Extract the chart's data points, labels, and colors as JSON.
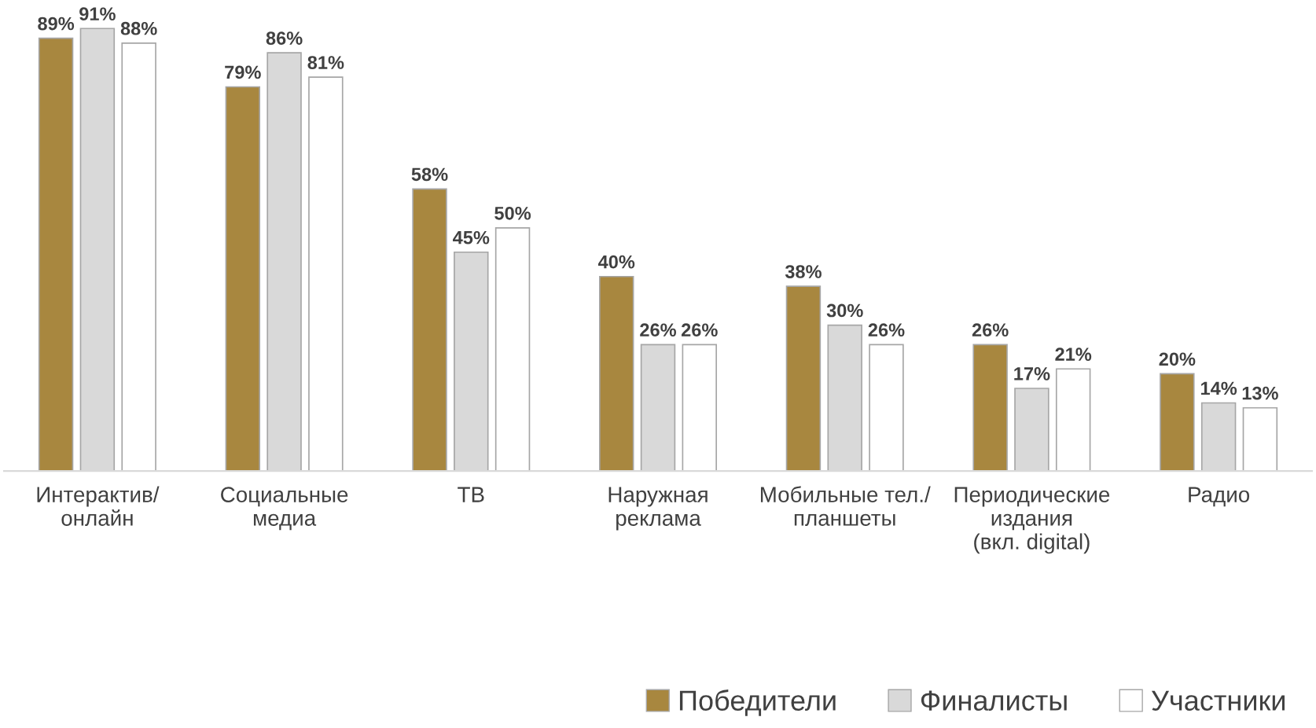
{
  "chart_data": {
    "type": "bar",
    "categories": [
      "Интерактив/\nонлайн",
      "Социальные\nмедиа",
      "ТВ",
      "Наружная\nреклама",
      "Мобильные тел./\nпланшеты",
      "Периодические\nиздания\n(вкл. digital)",
      "Радио"
    ],
    "series": [
      {
        "name": "Победители",
        "color": "#a8873f",
        "values": [
          89,
          79,
          58,
          40,
          38,
          26,
          20
        ],
        "value_labels": [
          "89%",
          "79%",
          "58%",
          "40%",
          "38%",
          "26%",
          "20%"
        ]
      },
      {
        "name": "Финалисты",
        "color": "#d9d9d9",
        "values": [
          91,
          86,
          45,
          26,
          30,
          17,
          14
        ],
        "value_labels": [
          "91%",
          "86%",
          "45%",
          "26%",
          "30%",
          "17%",
          "14%"
        ]
      },
      {
        "name": "Участники",
        "color": "#ffffff",
        "values": [
          88,
          81,
          50,
          26,
          26,
          21,
          13
        ],
        "value_labels": [
          "88%",
          "81%",
          "50%",
          "26%",
          "26%",
          "21%",
          "13%"
        ]
      }
    ],
    "tick_labels": "x",
    "grid": false,
    "legend": "bottom right"
  }
}
